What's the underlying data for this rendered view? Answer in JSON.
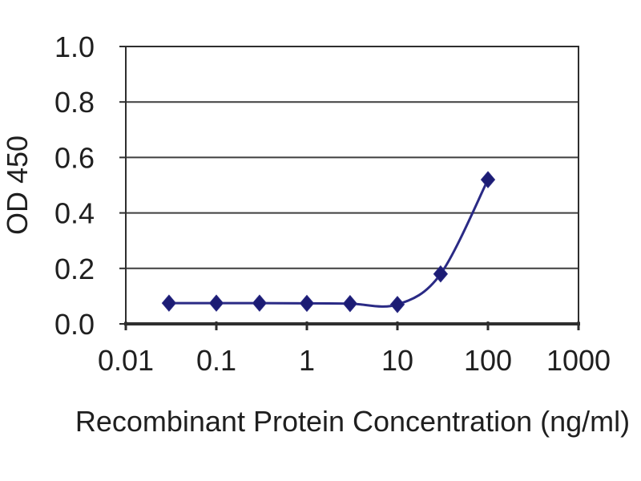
{
  "page": {
    "background": "#ffffff"
  },
  "chart_data": {
    "type": "line",
    "title": "",
    "xlabel": "Recombinant Protein Concentration (ng/ml)",
    "ylabel": "OD 450",
    "x_scale": "log",
    "xlim": [
      0.01,
      1000
    ],
    "ylim": [
      0.0,
      1.0
    ],
    "x_tick_values": [
      0.01,
      0.1,
      1,
      10,
      100,
      1000
    ],
    "x_tick_labels": [
      "0.01",
      "0.1",
      "1",
      "10",
      "100",
      "1000"
    ],
    "y_tick_values": [
      0.0,
      0.2,
      0.4,
      0.6,
      0.8,
      1.0
    ],
    "y_tick_labels": [
      "0.0",
      "0.2",
      "0.4",
      "0.6",
      "0.8",
      "1.0"
    ],
    "grid": true,
    "legend": false,
    "marker": "diamond",
    "line_smooth": true,
    "series": [
      {
        "name": "OD 450 vs concentration",
        "x": [
          0.03,
          0.1,
          0.3,
          1,
          3,
          10,
          30,
          100
        ],
        "y": [
          0.075,
          0.075,
          0.075,
          0.074,
          0.073,
          0.07,
          0.18,
          0.52
        ]
      }
    ],
    "colors": {
      "line": "#2a2a85",
      "marker": "#1c1c74",
      "grid": "#3f3f3f",
      "axis": "#2e2e2e",
      "text": "#1f1f1f"
    }
  }
}
